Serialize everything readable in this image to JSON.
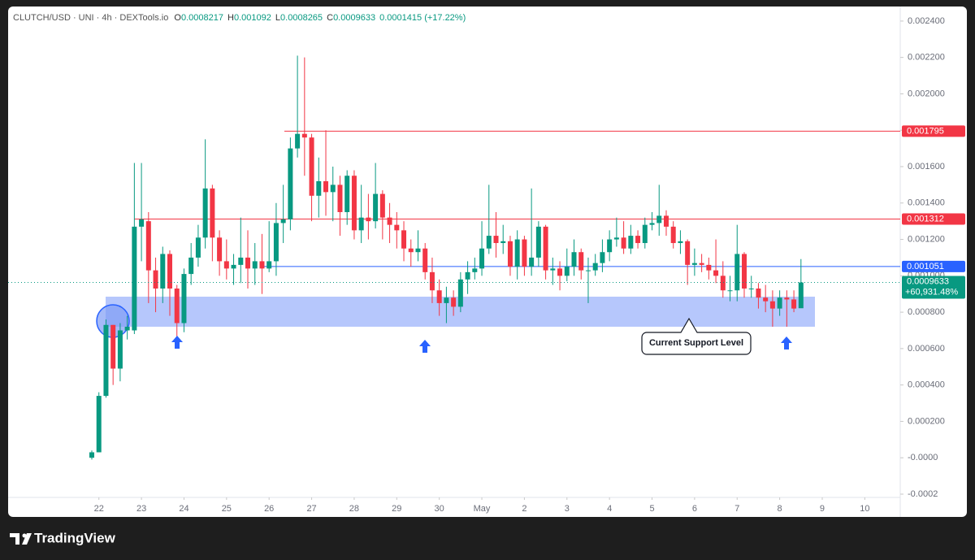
{
  "chart_data": {
    "type": "candlestick",
    "symbol": "CLUTCH/USD · UNI · 4h · DEXTools.io",
    "ohlc_labels": [
      "O",
      "H",
      "L",
      "C"
    ],
    "change": "0.0001415",
    "change_pct": "(+17.22%)",
    "up_color": "#089981",
    "down_color": "#f23645",
    "candles": [
      [
        0,
        4e-05,
        -1e-05,
        3e-05
      ],
      [
        3e-05,
        0.00036,
        3e-05,
        0.00034
      ],
      [
        0.00034,
        0.00076,
        0.00033,
        0.00073
      ],
      [
        0.00073,
        0.00073,
        0.0004,
        0.00049
      ],
      [
        0.00049,
        0.00074,
        0.00042,
        0.0007
      ],
      [
        0.0007,
        0.00078,
        0.00065,
        0.00072
      ],
      [
        0.0007,
        0.00162,
        0.00068,
        0.00127
      ],
      [
        0.00127,
        0.00162,
        0.00108,
        0.00131
      ],
      [
        0.0013,
        0.00135,
        0.00085,
        0.00103
      ],
      [
        0.00103,
        0.0011,
        0.0008,
        0.00093
      ],
      [
        0.00093,
        0.00116,
        0.00085,
        0.00112
      ],
      [
        0.00112,
        0.00114,
        0.00078,
        0.00093
      ],
      [
        0.00093,
        0.00095,
        0.00064,
        0.00074
      ],
      [
        0.00074,
        0.00104,
        0.00069,
        0.00101
      ],
      [
        0.00101,
        0.00118,
        0.00095,
        0.0011
      ],
      [
        0.0011,
        0.00128,
        0.00105,
        0.00121
      ],
      [
        0.00121,
        0.00175,
        0.00115,
        0.00148
      ],
      [
        0.00148,
        0.0015,
        0.00108,
        0.00121
      ],
      [
        0.00121,
        0.00125,
        0.001,
        0.00108
      ],
      [
        0.00108,
        0.0012,
        0.00098,
        0.00104
      ],
      [
        0.00104,
        0.00112,
        0.00095,
        0.00106
      ],
      [
        0.00106,
        0.00132,
        0.00096,
        0.0011
      ],
      [
        0.0011,
        0.00125,
        0.00093,
        0.00104
      ],
      [
        0.00104,
        0.00118,
        0.00095,
        0.00108
      ],
      [
        0.00108,
        0.00123,
        0.0009,
        0.00104
      ],
      [
        0.00104,
        0.0013,
        0.00102,
        0.00108
      ],
      [
        0.00108,
        0.0014,
        0.001,
        0.00129
      ],
      [
        0.00129,
        0.0015,
        0.00118,
        0.00131
      ],
      [
        0.00131,
        0.00176,
        0.00125,
        0.0017
      ],
      [
        0.0017,
        0.00221,
        0.00165,
        0.00178
      ],
      [
        0.00178,
        0.0022,
        0.00155,
        0.00176
      ],
      [
        0.00176,
        0.00178,
        0.0013,
        0.00144
      ],
      [
        0.00144,
        0.00165,
        0.00132,
        0.00152
      ],
      [
        0.00152,
        0.0018,
        0.00133,
        0.00146
      ],
      [
        0.00146,
        0.0016,
        0.0013,
        0.0015
      ],
      [
        0.0015,
        0.00155,
        0.00122,
        0.00135
      ],
      [
        0.00135,
        0.00158,
        0.00128,
        0.00155
      ],
      [
        0.00155,
        0.00158,
        0.0012,
        0.00125
      ],
      [
        0.00125,
        0.0015,
        0.00118,
        0.00132
      ],
      [
        0.00132,
        0.00145,
        0.0012,
        0.0013
      ],
      [
        0.0013,
        0.00162,
        0.00126,
        0.00145
      ],
      [
        0.00145,
        0.00147,
        0.0012,
        0.00132
      ],
      [
        0.00132,
        0.0014,
        0.00118,
        0.00128
      ],
      [
        0.00128,
        0.00135,
        0.00115,
        0.00125
      ],
      [
        0.00125,
        0.0013,
        0.00108,
        0.00115
      ],
      [
        0.00115,
        0.0012,
        0.00105,
        0.00113
      ],
      [
        0.00113,
        0.00125,
        0.00108,
        0.00115
      ],
      [
        0.00115,
        0.00118,
        0.00098,
        0.00102
      ],
      [
        0.00102,
        0.0011,
        0.00085,
        0.00092
      ],
      [
        0.00092,
        0.00098,
        0.00078,
        0.00085
      ],
      [
        0.00085,
        0.00094,
        0.00074,
        0.00088
      ],
      [
        0.00088,
        0.00092,
        0.00078,
        0.00083
      ],
      [
        0.00083,
        0.00102,
        0.0008,
        0.00098
      ],
      [
        0.00098,
        0.00108,
        0.0009,
        0.00102
      ],
      [
        0.00102,
        0.0011,
        0.00098,
        0.00104
      ],
      [
        0.00104,
        0.0013,
        0.001,
        0.00115
      ],
      [
        0.00115,
        0.0015,
        0.00112,
        0.00122
      ],
      [
        0.00122,
        0.00135,
        0.0011,
        0.00118
      ],
      [
        0.00118,
        0.00128,
        0.00112,
        0.00119
      ],
      [
        0.00119,
        0.00122,
        0.001,
        0.00105
      ],
      [
        0.00105,
        0.00125,
        0.00098,
        0.0012
      ],
      [
        0.0012,
        0.00122,
        0.001,
        0.00105
      ],
      [
        0.00105,
        0.00148,
        0.001,
        0.0011
      ],
      [
        0.0011,
        0.0013,
        0.00105,
        0.00127
      ],
      [
        0.00127,
        0.00128,
        0.00098,
        0.00103
      ],
      [
        0.00103,
        0.0011,
        0.00095,
        0.00104
      ],
      [
        0.00104,
        0.00108,
        0.00092,
        0.001
      ],
      [
        0.001,
        0.00115,
        0.00097,
        0.00105
      ],
      [
        0.00105,
        0.0012,
        0.001,
        0.00113
      ],
      [
        0.00113,
        0.00115,
        0.00098,
        0.00103
      ],
      [
        0.00103,
        0.0011,
        0.00085,
        0.00103
      ],
      [
        0.00103,
        0.00112,
        0.001,
        0.00107
      ],
      [
        0.00107,
        0.0012,
        0.00102,
        0.00113
      ],
      [
        0.00113,
        0.00125,
        0.00108,
        0.0012
      ],
      [
        0.0012,
        0.00132,
        0.00116,
        0.00121
      ],
      [
        0.00121,
        0.0013,
        0.00112,
        0.00115
      ],
      [
        0.00115,
        0.00128,
        0.00112,
        0.00122
      ],
      [
        0.00122,
        0.00125,
        0.00115,
        0.00118
      ],
      [
        0.00118,
        0.00132,
        0.00115,
        0.00128
      ],
      [
        0.00128,
        0.00135,
        0.00125,
        0.00129
      ],
      [
        0.00129,
        0.0015,
        0.00122,
        0.00133
      ],
      [
        0.00133,
        0.00136,
        0.00122,
        0.00127
      ],
      [
        0.00127,
        0.0013,
        0.00115,
        0.00118
      ],
      [
        0.00118,
        0.00125,
        0.00112,
        0.00119
      ],
      [
        0.00119,
        0.0012,
        0.00095,
        0.00106
      ],
      [
        0.00106,
        0.00115,
        0.001,
        0.00107
      ],
      [
        0.00107,
        0.00112,
        0.00102,
        0.00106
      ],
      [
        0.00106,
        0.0011,
        0.00098,
        0.00103
      ],
      [
        0.00103,
        0.0012,
        0.00096,
        0.001
      ],
      [
        0.001,
        0.00108,
        0.00088,
        0.00092
      ],
      [
        0.00092,
        0.001,
        0.00086,
        0.00092
      ],
      [
        0.00092,
        0.00128,
        0.00086,
        0.00112
      ],
      [
        0.00112,
        0.00113,
        0.00088,
        0.00093
      ],
      [
        0.00093,
        0.001,
        0.00088,
        0.00093
      ],
      [
        0.00093,
        0.00096,
        0.00082,
        0.00088
      ],
      [
        0.00088,
        0.00095,
        0.0008,
        0.00086
      ],
      [
        0.00086,
        0.00092,
        0.00072,
        0.00082
      ],
      [
        0.00082,
        0.00092,
        0.00078,
        0.00088
      ],
      [
        0.00088,
        0.00092,
        0.00072,
        0.00087
      ],
      [
        0.00087,
        0.00092,
        0.0008,
        0.00082
      ],
      [
        0.0008217,
        0.001092,
        0.0008265,
        0.0009633
      ]
    ],
    "xlim": [
      -11.8,
      114
    ],
    "xticks": [
      {
        "value": 1,
        "label": "22"
      },
      {
        "value": 7,
        "label": "23"
      },
      {
        "value": 13,
        "label": "24"
      },
      {
        "value": 19,
        "label": "25"
      },
      {
        "value": 25,
        "label": "26"
      },
      {
        "value": 31,
        "label": "27"
      },
      {
        "value": 37,
        "label": "28"
      },
      {
        "value": 43,
        "label": "29"
      },
      {
        "value": 49,
        "label": "30"
      },
      {
        "value": 55,
        "label": "May"
      },
      {
        "value": 61,
        "label": "2"
      },
      {
        "value": 67,
        "label": "3"
      },
      {
        "value": 73,
        "label": "4"
      },
      {
        "value": 79,
        "label": "5"
      },
      {
        "value": 85,
        "label": "6"
      },
      {
        "value": 91,
        "label": "7"
      },
      {
        "value": 97,
        "label": "8"
      },
      {
        "value": 103,
        "label": "9"
      },
      {
        "value": 109,
        "label": "10"
      }
    ],
    "ylim": [
      -0.000218,
      0.00248
    ],
    "yticks": [
      {
        "value": 0.0024,
        "label": "0.002400"
      },
      {
        "value": 0.0022,
        "label": "0.002200"
      },
      {
        "value": 0.002,
        "label": "0.002000"
      },
      {
        "value": 0.0018,
        "label": "0.001800"
      },
      {
        "value": 0.0016,
        "label": "0.001600"
      },
      {
        "value": 0.0014,
        "label": "0.001400"
      },
      {
        "value": 0.0012,
        "label": "0.001200"
      },
      {
        "value": 0.001,
        "label": "0.001000"
      },
      {
        "value": 0.0008,
        "label": "0.000800"
      },
      {
        "value": 0.0006,
        "label": "0.000600"
      },
      {
        "value": 0.0004,
        "label": "0.000400"
      },
      {
        "value": 0.0002,
        "label": "0.000200"
      },
      {
        "value": 0,
        "label": "-0.0000"
      },
      {
        "value": -0.0002,
        "label": "-0.0002"
      }
    ],
    "levels": [
      {
        "value": 0.001795,
        "color": "#f23645"
      },
      {
        "value": 0.001312,
        "color": "#f23645"
      },
      {
        "value": 0.001051,
        "color": "#2962ff"
      }
    ],
    "last_change_pct": "+60,931.48%",
    "annotation": "Current Support Level"
  },
  "footer": {
    "brand": "TradingView"
  }
}
